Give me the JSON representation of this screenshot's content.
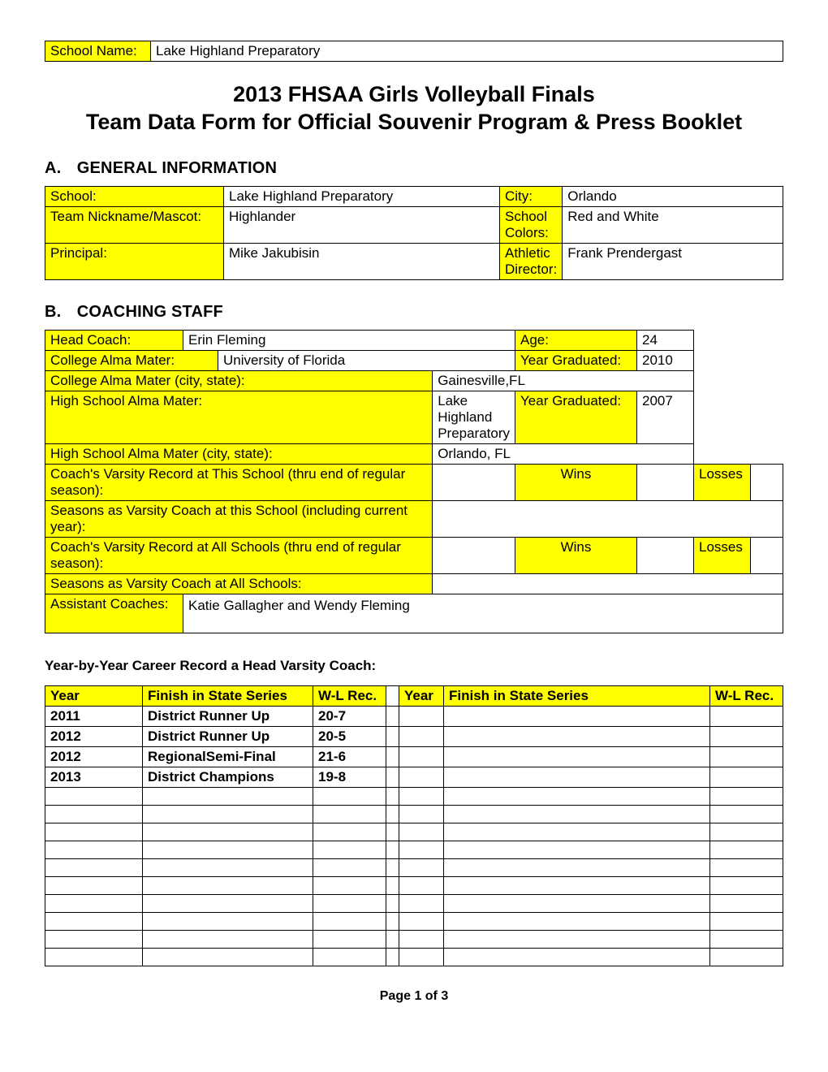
{
  "top": {
    "school_name_label": "School Name:",
    "school_name_value": "Lake Highland Preparatory"
  },
  "title": {
    "line1": "2013 FHSAA Girls Volleyball Finals",
    "line2": "Team Data Form for Official Souvenir Program & Press Booklet"
  },
  "sectionA": {
    "heading_letter": "A.",
    "heading_text": "GENERAL INFORMATION",
    "school_label": "School:",
    "school_value": "Lake Highland Preparatory",
    "city_label": "City:",
    "city_value": "Orlando",
    "nickname_label": "Team Nickname/Mascot:",
    "nickname_value": "Highlander",
    "colors_label": "School Colors:",
    "colors_value": "Red and White",
    "principal_label": "Principal:",
    "principal_value": "Mike Jakubisin",
    "ad_label": "Athletic Director:",
    "ad_value": "Frank Prendergast"
  },
  "sectionB": {
    "heading_letter": "B.",
    "heading_text": "COACHING STAFF",
    "head_coach_label": "Head Coach:",
    "head_coach_value": "Erin Fleming",
    "age_label": "Age:",
    "age_value": "24",
    "college_label": "College Alma Mater:",
    "college_value": "University of Florida",
    "college_grad_label": "Year Graduated:",
    "college_grad_value": "2010",
    "college_city_label": "College Alma Mater (city, state):",
    "college_city_value": "Gainesville,FL",
    "hs_label": "High School Alma Mater:",
    "hs_value": "Lake Highland Preparatory",
    "hs_grad_label": "Year Graduated:",
    "hs_grad_value": "2007",
    "hs_city_label": "High School Alma Mater (city, state):",
    "hs_city_value": "Orlando, FL",
    "rec_this_label": "Coach's Varsity Record at This School (thru end of regular season):",
    "rec_this_wins": "Wins",
    "rec_this_losses": "Losses",
    "seasons_this_label": "Seasons as Varsity Coach at this School (including current year):",
    "rec_all_label": "Coach's Varsity Record at All Schools (thru end of regular season):",
    "rec_all_wins": "Wins",
    "rec_all_losses": "Losses",
    "seasons_all_label": "Seasons as Varsity Coach at All Schools:",
    "asst_label": "Assistant Coaches:",
    "asst_value": "Katie Gallagher and Wendy Fleming"
  },
  "career": {
    "heading": "Year-by-Year Career Record a Head Varsity Coach:",
    "cols": {
      "year": "Year",
      "finish": "Finish in State Series",
      "rec": "W-L Rec."
    },
    "rows_left": [
      {
        "year": "2011",
        "finish": "District Runner Up",
        "rec": "20-7"
      },
      {
        "year": "2012",
        "finish": "District Runner Up",
        "rec": "20-5"
      },
      {
        "year": "2012",
        "finish": "RegionalSemi-Final",
        "rec": "21-6"
      },
      {
        "year": "2013",
        "finish": "District Champions",
        "rec": "19-8"
      },
      {
        "year": "",
        "finish": "",
        "rec": ""
      },
      {
        "year": "",
        "finish": "",
        "rec": ""
      },
      {
        "year": "",
        "finish": "",
        "rec": ""
      },
      {
        "year": "",
        "finish": "",
        "rec": ""
      },
      {
        "year": "",
        "finish": "",
        "rec": ""
      },
      {
        "year": "",
        "finish": "",
        "rec": ""
      },
      {
        "year": "",
        "finish": "",
        "rec": ""
      },
      {
        "year": "",
        "finish": "",
        "rec": ""
      },
      {
        "year": "",
        "finish": "",
        "rec": ""
      },
      {
        "year": "",
        "finish": "",
        "rec": ""
      }
    ],
    "rows_right": [
      {
        "year": "",
        "finish": "",
        "rec": ""
      },
      {
        "year": "",
        "finish": "",
        "rec": ""
      },
      {
        "year": "",
        "finish": "",
        "rec": ""
      },
      {
        "year": "",
        "finish": "",
        "rec": ""
      },
      {
        "year": "",
        "finish": "",
        "rec": ""
      },
      {
        "year": "",
        "finish": "",
        "rec": ""
      },
      {
        "year": "",
        "finish": "",
        "rec": ""
      },
      {
        "year": "",
        "finish": "",
        "rec": ""
      },
      {
        "year": "",
        "finish": "",
        "rec": ""
      },
      {
        "year": "",
        "finish": "",
        "rec": ""
      },
      {
        "year": "",
        "finish": "",
        "rec": ""
      },
      {
        "year": "",
        "finish": "",
        "rec": ""
      },
      {
        "year": "",
        "finish": "",
        "rec": ""
      },
      {
        "year": "",
        "finish": "",
        "rec": ""
      }
    ]
  },
  "footer": "Page 1 of 3",
  "style": {
    "highlight_color": "#ffff00",
    "border_color": "#000000"
  }
}
